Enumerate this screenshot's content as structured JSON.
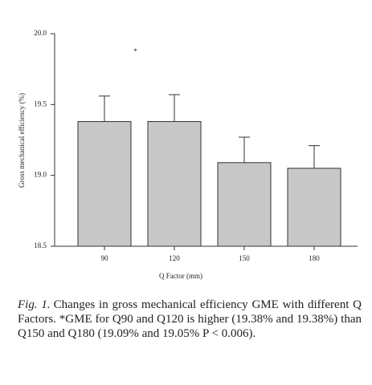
{
  "chart_data": {
    "type": "bar",
    "x_label": "Q Factor (mm)",
    "y_label": "Gross mechanical efficiency (%)",
    "annotation": "*",
    "categories": [
      "90",
      "120",
      "150",
      "180"
    ],
    "values": [
      19.38,
      19.38,
      19.09,
      19.05
    ],
    "errors": [
      0.18,
      0.19,
      0.18,
      0.16
    ],
    "color": "#c8c8c8",
    "ylim": [
      18.5,
      20.0
    ],
    "yticks": [
      {
        "value": 18.5,
        "label": "18.5"
      },
      {
        "value": 19.0,
        "label": "19.0"
      },
      {
        "value": 19.5,
        "label": "19.5"
      },
      {
        "value": 20.0,
        "label": "20.0"
      }
    ],
    "grid": false
  },
  "caption": {
    "label": "Fig. 1.",
    "text": "Changes in gross mechanical efficiency GME with different Q Factors. *GME for Q90 and Q120 is higher (19.38% and 19.38%) than Q150 and Q180 (19.09% and 19.05% P < 0.006)."
  }
}
